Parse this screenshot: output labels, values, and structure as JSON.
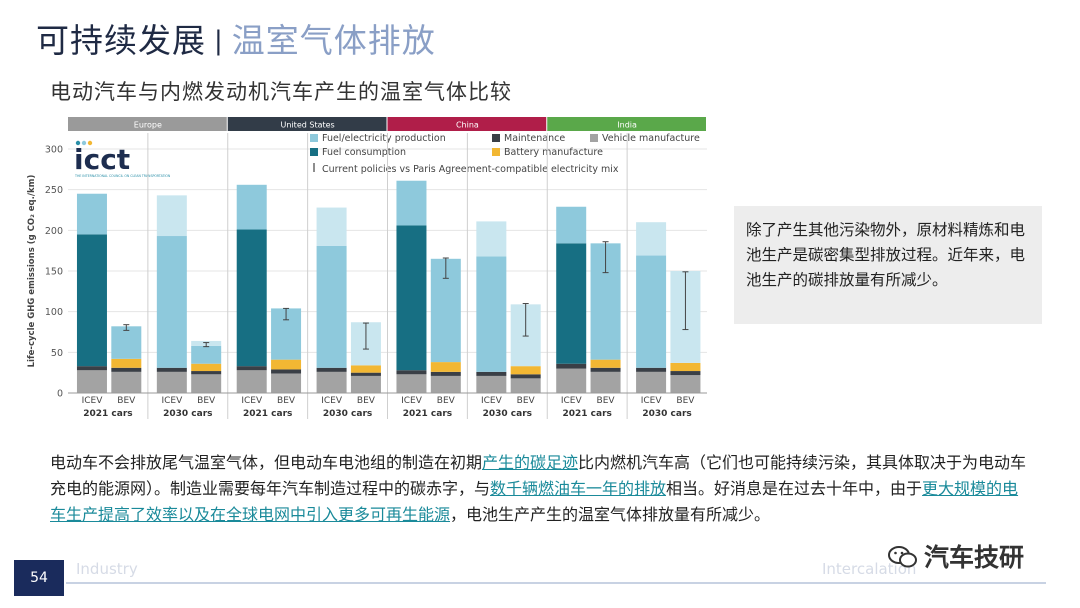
{
  "header": {
    "title_main": "可持续发展",
    "separator": "|",
    "title_sub": "温室气体排放"
  },
  "subtitle": "电动汽车与内燃发动机汽车产生的温室气体比较",
  "callout": {
    "text": "除了产生其他污染物外，原材料精炼和电池生产是碳密集型排放过程。近年来，电池生产的碳排放量有所减少。"
  },
  "body": {
    "p1": "电动车不会排放尾气温室气体，但电动车电池组的制造在初期",
    "link1": "产生的碳足迹",
    "p2": "比内燃机汽车高（它们也可能持续污染，其具体取决于为电动车充电的能源网）。制造业需要每年汽车制造过程中的碳赤字，与",
    "link2": "数千辆燃油车一年的排放",
    "p3": "相当。好消息是在过去十年中，由于",
    "link3": "更大规模的电车生产提高了效率以及在全球电网中引入更多可再生能源",
    "p4": "，电池生产产生的温室气体排放量有所减少。"
  },
  "footer": {
    "page": "54",
    "left": "Industry",
    "right": "Intercalation"
  },
  "watermark": {
    "text": "汽车技研",
    "icon": "wechat-icon"
  },
  "chart_data": {
    "type": "bar",
    "stacked": true,
    "logo": {
      "main": "icct",
      "sub": "THE INTERNATIONAL COUNCIL ON CLEAN TRANSPORTATION"
    },
    "ylabel": "Life-cycle GHG emissions (g CO₂ eq./km)",
    "ylim": [
      0,
      300
    ],
    "yticks": [
      0,
      50,
      100,
      150,
      200,
      250,
      300
    ],
    "regions": [
      {
        "name": "Europe",
        "color": "#9a9a9a"
      },
      {
        "name": "United States",
        "color": "#323c48"
      },
      {
        "name": "China",
        "color": "#b01e49"
      },
      {
        "name": "India",
        "color": "#5aa84a"
      }
    ],
    "groups": [
      "2021 cars",
      "2030 cars"
    ],
    "categories": [
      "ICEV",
      "BEV"
    ],
    "legend": [
      {
        "name": "Fuel/electricity production",
        "color": "#8ec9dc"
      },
      {
        "name": "Maintenance",
        "color": "#3a3f46"
      },
      {
        "name": "Vehicle manufacture",
        "color": "#a3a3a3"
      },
      {
        "name": "Fuel consumption",
        "color": "#176f83"
      },
      {
        "name": "Battery manufacture",
        "color": "#f2b733"
      },
      {
        "name": "Current policies vs Paris Agreement-compatible electricity mix",
        "color": "#444444"
      }
    ],
    "bars": [
      {
        "region": "Europe",
        "group": "2021 cars",
        "cat": "ICEV",
        "vehicle": 28,
        "battery": 0,
        "maintenance": 5,
        "fuel_consumption": 162,
        "fuel_production": 50
      },
      {
        "region": "Europe",
        "group": "2021 cars",
        "cat": "BEV",
        "vehicle": 26,
        "battery": 11,
        "maintenance": 5,
        "fuel_consumption": 0,
        "fuel_production": 40,
        "err": [
          77,
          84
        ]
      },
      {
        "region": "Europe",
        "group": "2030 cars",
        "cat": "ICEV",
        "vehicle": 26,
        "battery": 0,
        "maintenance": 5,
        "fuel_consumption": 0,
        "fuel_production": 162,
        "fuel_production_light": 50
      },
      {
        "region": "Europe",
        "group": "2030 cars",
        "cat": "BEV",
        "vehicle": 23,
        "battery": 9,
        "maintenance": 4,
        "fuel_consumption": 0,
        "fuel_production": 22,
        "fuel_production_light": 6,
        "err": [
          57,
          62
        ]
      },
      {
        "region": "United States",
        "group": "2021 cars",
        "cat": "ICEV",
        "vehicle": 28,
        "battery": 0,
        "maintenance": 5,
        "fuel_consumption": 168,
        "fuel_production": 55
      },
      {
        "region": "United States",
        "group": "2021 cars",
        "cat": "BEV",
        "vehicle": 24,
        "battery": 12,
        "maintenance": 5,
        "fuel_consumption": 0,
        "fuel_production": 63,
        "err": [
          90,
          104
        ]
      },
      {
        "region": "United States",
        "group": "2030 cars",
        "cat": "ICEV",
        "vehicle": 26,
        "battery": 0,
        "maintenance": 5,
        "fuel_consumption": 0,
        "fuel_production": 150,
        "fuel_production_light": 47
      },
      {
        "region": "United States",
        "group": "2030 cars",
        "cat": "BEV",
        "vehicle": 21,
        "battery": 9,
        "maintenance": 4,
        "fuel_consumption": 0,
        "fuel_production": 0,
        "fuel_production_light": 53,
        "err": [
          54,
          86
        ]
      },
      {
        "region": "China",
        "group": "2021 cars",
        "cat": "ICEV",
        "vehicle": 23,
        "battery": 0,
        "maintenance": 5,
        "fuel_consumption": 178,
        "fuel_production": 55
      },
      {
        "region": "China",
        "group": "2021 cars",
        "cat": "BEV",
        "vehicle": 21,
        "battery": 12,
        "maintenance": 5,
        "fuel_consumption": 0,
        "fuel_production": 127,
        "err": [
          141,
          166
        ]
      },
      {
        "region": "China",
        "group": "2030 cars",
        "cat": "ICEV",
        "vehicle": 21,
        "battery": 0,
        "maintenance": 5,
        "fuel_consumption": 0,
        "fuel_production": 142,
        "fuel_production_light": 43
      },
      {
        "region": "China",
        "group": "2030 cars",
        "cat": "BEV",
        "vehicle": 18,
        "battery": 10,
        "maintenance": 5,
        "fuel_consumption": 0,
        "fuel_production": 0,
        "fuel_production_light": 76,
        "err": [
          70,
          110
        ]
      },
      {
        "region": "India",
        "group": "2021 cars",
        "cat": "ICEV",
        "vehicle": 30,
        "battery": 0,
        "maintenance": 6,
        "fuel_consumption": 148,
        "fuel_production": 45
      },
      {
        "region": "India",
        "group": "2021 cars",
        "cat": "BEV",
        "vehicle": 26,
        "battery": 10,
        "maintenance": 5,
        "fuel_consumption": 0,
        "fuel_production": 143,
        "err": [
          148,
          186
        ]
      },
      {
        "region": "India",
        "group": "2030 cars",
        "cat": "ICEV",
        "vehicle": 26,
        "battery": 0,
        "maintenance": 5,
        "fuel_consumption": 0,
        "fuel_production": 138,
        "fuel_production_light": 41
      },
      {
        "region": "India",
        "group": "2030 cars",
        "cat": "BEV",
        "vehicle": 22,
        "battery": 10,
        "maintenance": 5,
        "fuel_consumption": 0,
        "fuel_production": 0,
        "fuel_production_light": 113,
        "err": [
          78,
          149
        ]
      }
    ]
  }
}
